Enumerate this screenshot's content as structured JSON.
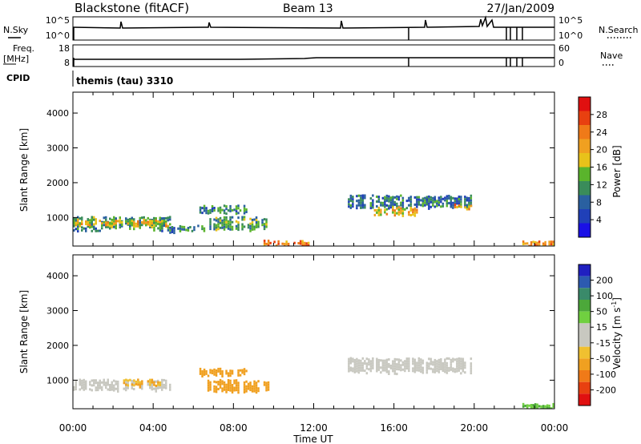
{
  "header": {
    "title": "Blackstone (fitACF)",
    "beam": "Beam 13",
    "date": "27/Jan/2009"
  },
  "top_panels": {
    "nsky_label": "N.Sky",
    "nsky_ticks": [
      "10^5",
      "10^0"
    ],
    "nsearch_label": "N.Search",
    "nsearch_ticks": [
      "10^5",
      "10^0"
    ],
    "freq_label_1": "Freq.",
    "freq_label_2": "[MHz]",
    "freq_ticks": [
      "18",
      "8"
    ],
    "nave_label": "Nave",
    "nave_ticks": [
      "60",
      "0"
    ],
    "cpid_label": "CPID",
    "cpid_value": "themis (tau) 3310"
  },
  "axes": {
    "ylabel": "Slant Range [km]",
    "yticks": [
      "1000",
      "2000",
      "3000",
      "4000"
    ],
    "xticks": [
      "00:00",
      "04:00",
      "08:00",
      "12:00",
      "16:00",
      "20:00",
      "00:00"
    ],
    "xlabel": "Time UT"
  },
  "power_scale": {
    "label": "Power [dB]",
    "ticks": [
      "4",
      "8",
      "12",
      "16",
      "20",
      "24",
      "28"
    ],
    "colors": [
      "#1a10e6",
      "#2040b8",
      "#2a60a0",
      "#3a8c5a",
      "#5ab42c",
      "#e8c21a",
      "#f0a020",
      "#f07a18",
      "#e84010",
      "#e01010"
    ]
  },
  "velocity_scale": {
    "label": "Velocity [m s",
    "label_sup": "-1",
    "label_end": "]",
    "ticks": [
      "200",
      "100",
      "50",
      "15",
      "-15",
      "-50",
      "-100",
      "-200"
    ],
    "colors": [
      "#2020c0",
      "#2c5ab0",
      "#3a8a6a",
      "#4ca83a",
      "#70d040",
      "#c8c8c0",
      "#c8c8c0",
      "#f0c030",
      "#f0a020",
      "#f07a18",
      "#e84010",
      "#e01010"
    ]
  },
  "chart_data": {
    "type": "heatmap",
    "x_range": [
      "00:00",
      "24:00"
    ],
    "y_range_km": [
      180,
      4600
    ],
    "power_regions": [
      {
        "t": [
          0.0,
          4.8
        ],
        "km": [
          740,
          1000
        ],
        "value_db": 12
      },
      {
        "t": [
          0.0,
          4.8
        ],
        "km": [
          820,
          900
        ],
        "value_db": 18
      },
      {
        "t": [
          0.0,
          1.5
        ],
        "km": [
          620,
          680
        ],
        "value_db": 8
      },
      {
        "t": [
          4.0,
          6.5
        ],
        "km": [
          620,
          760
        ],
        "value_db": 10
      },
      {
        "t": [
          6.3,
          8.6
        ],
        "km": [
          1150,
          1330
        ],
        "value_db": 10
      },
      {
        "t": [
          6.7,
          9.8
        ],
        "km": [
          680,
          1000
        ],
        "value_db": 12
      },
      {
        "t": [
          9.5,
          11.8
        ],
        "km": [
          200,
          320
        ],
        "value_db": 22
      },
      {
        "t": [
          13.7,
          19.8
        ],
        "km": [
          1300,
          1620
        ],
        "value_db": 8
      },
      {
        "t": [
          15.0,
          17.2
        ],
        "km": [
          1080,
          1280
        ],
        "value_db": 18
      },
      {
        "t": [
          19.0,
          19.8
        ],
        "km": [
          1280,
          1360
        ],
        "value_db": 20
      },
      {
        "t": [
          22.4,
          24.0
        ],
        "km": [
          200,
          320
        ],
        "value_db": 20
      }
    ],
    "velocity_regions": [
      {
        "t": [
          0.0,
          4.8
        ],
        "km": [
          740,
          1000
        ],
        "value_ms": 0
      },
      {
        "t": [
          2.5,
          4.4
        ],
        "km": [
          880,
          1000
        ],
        "value_ms": -30
      },
      {
        "t": [
          6.3,
          8.6
        ],
        "km": [
          1150,
          1330
        ],
        "value_ms": -40
      },
      {
        "t": [
          6.7,
          9.8
        ],
        "km": [
          680,
          1000
        ],
        "value_ms": -40
      },
      {
        "t": [
          13.7,
          19.8
        ],
        "km": [
          1250,
          1620
        ],
        "value_ms": 0
      },
      {
        "t": [
          22.4,
          24.0
        ],
        "km": [
          200,
          320
        ],
        "value_ms": 30
      }
    ]
  }
}
